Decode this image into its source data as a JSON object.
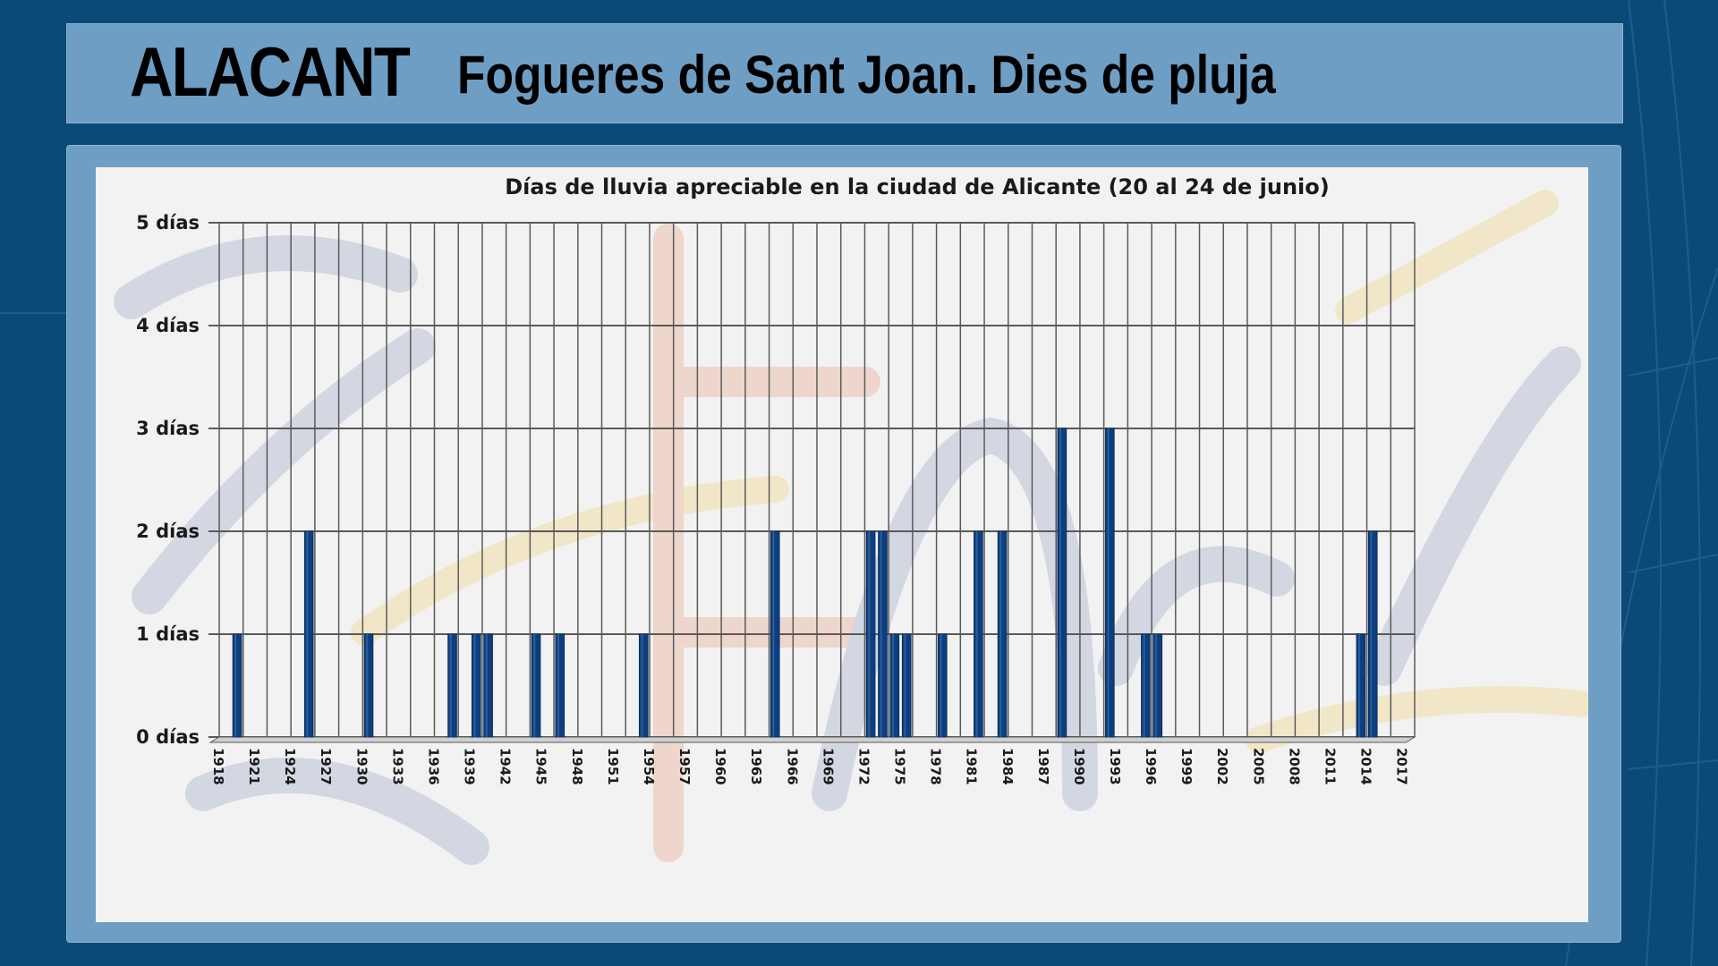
{
  "header": {
    "brand": "ALACANT",
    "title": "Fogueres de Sant Joan. Dies de pluja"
  },
  "colors": {
    "background": "#0b4a78",
    "band": "#6f9ec4",
    "bar": "#0d3f7f",
    "grid": "#5a5a5a"
  },
  "chart_data": {
    "type": "bar",
    "title": "Días de lluvia apreciable en la ciudad de Alicante (20 al 24 de junio)",
    "xlabel": "",
    "ylabel": "",
    "ylim": [
      0,
      5
    ],
    "grid": true,
    "y_ticks": [
      {
        "value": 0,
        "label": "0 días"
      },
      {
        "value": 1,
        "label": "1 días"
      },
      {
        "value": 2,
        "label": "2 días"
      },
      {
        "value": 3,
        "label": "3 días"
      },
      {
        "value": 4,
        "label": "4 días"
      },
      {
        "value": 5,
        "label": "5 días"
      }
    ],
    "x_range": [
      1918,
      2017
    ],
    "x_tick_labels": [
      "1918",
      "1921",
      "1924",
      "1927",
      "1930",
      "1933",
      "1936",
      "1939",
      "1942",
      "1945",
      "1948",
      "1951",
      "1954",
      "1957",
      "1960",
      "1963",
      "1966",
      "1969",
      "1972",
      "1975",
      "1978",
      "1981",
      "1984",
      "1987",
      "1990",
      "1993",
      "1996",
      "1999",
      "2002",
      "2005",
      "2008",
      "2011",
      "2014",
      "2017"
    ],
    "points": [
      {
        "x": 1919,
        "y": 1
      },
      {
        "x": 1925,
        "y": 2
      },
      {
        "x": 1930,
        "y": 1
      },
      {
        "x": 1937,
        "y": 1
      },
      {
        "x": 1939,
        "y": 1
      },
      {
        "x": 1940,
        "y": 1
      },
      {
        "x": 1944,
        "y": 1
      },
      {
        "x": 1946,
        "y": 1
      },
      {
        "x": 1953,
        "y": 1
      },
      {
        "x": 1964,
        "y": 2
      },
      {
        "x": 1972,
        "y": 2
      },
      {
        "x": 1973,
        "y": 2
      },
      {
        "x": 1974,
        "y": 1
      },
      {
        "x": 1975,
        "y": 1
      },
      {
        "x": 1978,
        "y": 1
      },
      {
        "x": 1981,
        "y": 2
      },
      {
        "x": 1983,
        "y": 2
      },
      {
        "x": 1988,
        "y": 3
      },
      {
        "x": 1992,
        "y": 3
      },
      {
        "x": 1995,
        "y": 1
      },
      {
        "x": 1996,
        "y": 1
      },
      {
        "x": 2013,
        "y": 1
      },
      {
        "x": 2014,
        "y": 2
      }
    ]
  }
}
